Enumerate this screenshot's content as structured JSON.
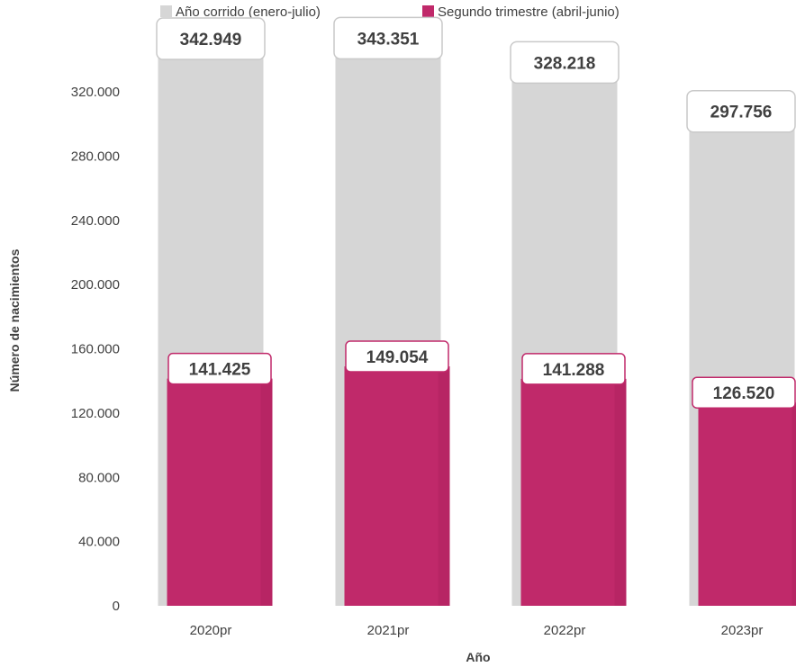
{
  "chart_data": {
    "type": "bar",
    "categories": [
      "2020pr",
      "2021pr",
      "2022pr",
      "2023pr"
    ],
    "series": [
      {
        "name": "Año corrido (enero-julio)",
        "values": [
          342949,
          343351,
          328218,
          297756
        ],
        "labels": [
          "342.949",
          "343.351",
          "328.218",
          "297.756"
        ],
        "color": "#d6d6d6"
      },
      {
        "name": "Segundo trimestre (abril-junio)",
        "values": [
          141425,
          149054,
          141288,
          126520
        ],
        "labels": [
          "141.425",
          "149.054",
          "141.288",
          "126.520"
        ],
        "color": "#c0296a"
      }
    ],
    "xlabel": "Año",
    "ylabel": "Número de nacimientos",
    "ylim": [
      0,
      360000
    ],
    "yticks": [
      0,
      40000,
      80000,
      120000,
      160000,
      200000,
      240000,
      280000,
      320000
    ],
    "ytick_labels": [
      "0",
      "40.000",
      "80.000",
      "120.000",
      "160.000",
      "200.000",
      "240.000",
      "280.000",
      "320.000"
    ],
    "legend_position": "top",
    "grid": false
  }
}
